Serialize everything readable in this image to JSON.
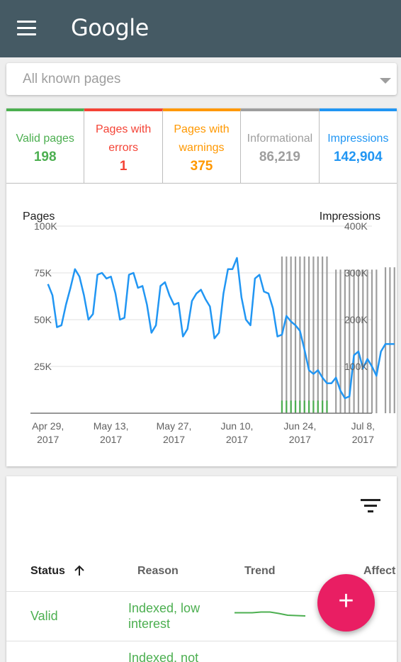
{
  "appbar": {
    "logo_text": "Google",
    "bg": "#455a64"
  },
  "filter_select": {
    "value": "All known pages"
  },
  "tiles": [
    {
      "label_lines": [
        "Valid pages"
      ],
      "value": "198",
      "color": "#4caf50"
    },
    {
      "label_lines": [
        "Pages with",
        "errors"
      ],
      "value": "1",
      "color": "#f44336"
    },
    {
      "label_lines": [
        "Pages with",
        "warnings"
      ],
      "value": "375",
      "color": "#ff9800"
    },
    {
      "label_lines": [
        "Informational"
      ],
      "value": "86,219",
      "color": "#9e9e9e"
    },
    {
      "label_lines": [
        "Impressions"
      ],
      "value": "142,904",
      "color": "#2196f3"
    }
  ],
  "chart_data": {
    "type": "line",
    "left_axis_title": "Pages",
    "right_axis_title": "Impressions",
    "left_ticks": [
      "100K",
      "75K",
      "50K",
      "25K"
    ],
    "right_ticks": [
      "400K",
      "300K",
      "200K",
      "100K"
    ],
    "ylim_pages": [
      0,
      100000
    ],
    "ylim_impressions": [
      0,
      400000
    ],
    "x_labels": [
      [
        "Apr 29,",
        "2017"
      ],
      [
        "May 13,",
        "2017"
      ],
      [
        "May 27,",
        "2017"
      ],
      [
        "Jun 10,",
        "2017"
      ],
      [
        "Jun 24,",
        "2017"
      ],
      [
        "Jul 8,",
        "2017"
      ]
    ],
    "x_range_days": [
      -2,
      72
    ],
    "x_label_days": [
      0,
      14,
      28,
      42,
      56,
      70
    ],
    "impressions": {
      "color": "#2196f3",
      "values": [
        69000,
        63000,
        46000,
        47000,
        58000,
        67000,
        77000,
        73000,
        63000,
        50000,
        53000,
        74000,
        75000,
        72000,
        73000,
        64000,
        50000,
        51000,
        74000,
        75000,
        67000,
        68000,
        58000,
        43000,
        47000,
        68000,
        70000,
        63000,
        58000,
        59000,
        41000,
        45000,
        60000,
        64000,
        66000,
        61000,
        57000,
        40000,
        43000,
        64000,
        77000,
        77000,
        83000,
        62000,
        50000,
        47000,
        72000,
        74000,
        65000,
        64000,
        56000,
        41000,
        42000,
        52000,
        49000,
        47000,
        44000,
        34000,
        23000,
        21000,
        23000,
        19000,
        16000,
        16000,
        19000,
        12000,
        8000,
        9000,
        31000,
        33000,
        24000,
        29000,
        25000,
        20000,
        33000,
        37000,
        37000,
        37000
      ]
    },
    "informational_bars": {
      "color": "#9e9e9e",
      "start_day": 52,
      "values": [
        335000,
        335000,
        335000,
        335000,
        335000,
        335000,
        335000,
        335000,
        335000,
        335000,
        335000,
        0,
        307000,
        307000,
        307000,
        307000,
        307000,
        307000,
        307000,
        307000,
        307000,
        307000,
        0,
        312000,
        312000,
        312000,
        312000,
        312000,
        312000,
        312000,
        312000,
        312000
      ]
    },
    "valid_bars": {
      "color": "#4caf50",
      "start_day": 52,
      "values": [
        27000,
        27000,
        27000,
        27000,
        27000,
        27000,
        27000,
        27000,
        27000,
        27000,
        27000
      ]
    }
  },
  "table": {
    "columns": [
      "Status",
      "Reason",
      "Trend",
      "Affect"
    ],
    "rows": [
      {
        "status": "Valid",
        "reason_lines": [
          "Indexed, low",
          "interest"
        ],
        "trend": [
          0.53,
          0.53,
          0.53,
          0.55,
          0.55,
          0.51,
          0.46,
          0.45,
          0.44
        ]
      },
      {
        "status": "",
        "reason_lines": [
          "Indexed, not"
        ],
        "trend": []
      }
    ]
  },
  "fab": {
    "label": "+",
    "color": "#e91e63"
  }
}
